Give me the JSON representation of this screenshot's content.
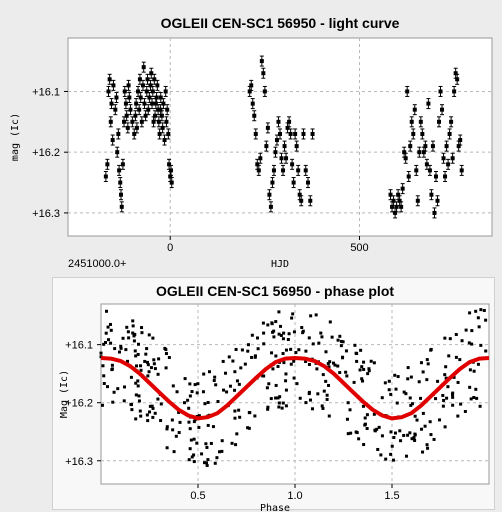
{
  "chart_data": [
    {
      "type": "scatter",
      "title": "OGLEII CEN-SC1 56950 - light curve",
      "xlabel": "HJD",
      "ylabel": "mag (Ic)",
      "x_offset_label": "2451000.0+",
      "xlim": [
        -270,
        850
      ],
      "ylim": [
        16.338,
        16.012
      ],
      "y_inverted": true,
      "x_ticks": [
        0,
        500
      ],
      "x_tick_labels": [
        "0",
        "500"
      ],
      "y_ticks": [
        16.1,
        16.2,
        16.3
      ],
      "y_tick_labels": [
        "+16.1",
        "+16.2",
        "+16.3"
      ],
      "grid": true,
      "error_bars": true,
      "marker_color": "#000000",
      "x": [
        -170,
        -166,
        -163,
        -160,
        -157,
        -155,
        -152,
        -150,
        -145,
        -142,
        -140,
        -137,
        -135,
        -132,
        -130,
        -128,
        -125,
        -122,
        -120,
        -117,
        -115,
        -112,
        -110,
        -108,
        -105,
        -100,
        -95,
        -92,
        -90,
        -88,
        -85,
        -82,
        -80,
        -78,
        -75,
        -72,
        -70,
        -68,
        -65,
        -62,
        -60,
        -58,
        -55,
        -52,
        -50,
        -48,
        -46,
        -44,
        -42,
        -40,
        -38,
        -36,
        -34,
        -32,
        -30,
        -28,
        -26,
        -25,
        -22,
        -20,
        -18,
        -15,
        -12,
        -10,
        -8,
        -5,
        -3,
        0,
        2,
        4,
        210,
        214,
        218,
        222,
        226,
        230,
        234,
        238,
        242,
        246,
        250,
        254,
        258,
        262,
        266,
        270,
        274,
        278,
        282,
        286,
        290,
        294,
        298,
        302,
        306,
        310,
        314,
        318,
        322,
        326,
        330,
        334,
        338,
        342,
        346,
        352,
        358,
        364,
        370,
        376,
        582,
        586,
        590,
        594,
        598,
        602,
        606,
        610,
        614,
        618,
        622,
        626,
        630,
        634,
        638,
        642,
        646,
        650,
        654,
        658,
        662,
        666,
        670,
        674,
        678,
        682,
        686,
        690,
        694,
        698,
        702,
        706,
        710,
        714,
        718,
        722,
        726,
        730,
        734,
        738,
        742,
        746,
        750,
        754,
        758,
        762,
        766,
        770
      ],
      "y": [
        16.24,
        16.22,
        16.1,
        16.08,
        16.15,
        16.12,
        16.18,
        16.09,
        16.13,
        16.11,
        16.2,
        16.17,
        16.23,
        16.25,
        16.27,
        16.29,
        16.22,
        16.15,
        16.1,
        16.12,
        16.14,
        16.16,
        16.09,
        16.11,
        16.13,
        16.15,
        16.17,
        16.14,
        16.12,
        16.16,
        16.1,
        16.13,
        16.08,
        16.11,
        16.15,
        16.09,
        16.06,
        16.12,
        16.14,
        16.1,
        16.08,
        16.13,
        16.11,
        16.09,
        16.07,
        16.12,
        16.1,
        16.15,
        16.08,
        16.14,
        16.12,
        16.11,
        16.09,
        16.13,
        16.15,
        16.17,
        16.13,
        16.11,
        16.14,
        16.16,
        16.12,
        16.18,
        16.1,
        16.15,
        16.13,
        16.17,
        16.22,
        16.24,
        16.23,
        16.25,
        16.1,
        16.09,
        16.12,
        16.14,
        16.17,
        16.22,
        16.23,
        16.21,
        16.05,
        16.07,
        16.1,
        16.19,
        16.16,
        16.27,
        16.29,
        16.25,
        16.23,
        16.2,
        16.18,
        16.15,
        16.17,
        16.21,
        16.23,
        16.19,
        16.21,
        16.16,
        16.15,
        16.17,
        16.22,
        16.25,
        16.17,
        16.19,
        16.23,
        16.27,
        16.28,
        16.17,
        16.23,
        16.25,
        16.28,
        16.17,
        16.27,
        16.29,
        16.28,
        16.3,
        16.29,
        16.27,
        16.28,
        16.29,
        16.26,
        16.2,
        16.21,
        16.1,
        16.24,
        16.19,
        16.15,
        16.17,
        16.13,
        16.23,
        16.28,
        16.2,
        16.15,
        16.17,
        16.2,
        16.19,
        16.22,
        16.12,
        16.23,
        16.27,
        16.19,
        16.3,
        16.24,
        16.28,
        16.15,
        16.1,
        16.13,
        16.21,
        16.24,
        16.19,
        16.22,
        16.17,
        16.15,
        16.21,
        16.1,
        16.07,
        16.08,
        16.19,
        16.18,
        16.23
      ]
    },
    {
      "type": "scatter",
      "title": "OGLEII CEN-SC1 56950 - phase plot",
      "xlabel": "Phase",
      "ylabel": "Mag (Ic)",
      "xlim": [
        0.0,
        2.0
      ],
      "ylim": [
        16.34,
        16.03
      ],
      "y_inverted": true,
      "x_ticks": [
        0.5,
        1.0,
        1.5
      ],
      "x_tick_labels": [
        "0.5",
        "1.0",
        "1.5"
      ],
      "y_ticks": [
        16.1,
        16.2,
        16.3
      ],
      "y_tick_labels": [
        "+16.1",
        "+16.2",
        "+16.3"
      ],
      "grid": true,
      "marker_color": "#000000",
      "fit_curve_color": "#e00000",
      "fit_curve": {
        "description_mean": 16.175,
        "amplitude": 0.052,
        "max_brightness_phase": 0.0,
        "x": [
          0.0,
          0.05,
          0.1,
          0.15,
          0.2,
          0.25,
          0.3,
          0.35,
          0.4,
          0.45,
          0.5,
          0.55,
          0.6,
          0.65,
          0.7,
          0.75,
          0.8,
          0.85,
          0.9,
          0.95,
          1.0,
          1.05,
          1.1,
          1.15,
          1.2,
          1.25,
          1.3,
          1.35,
          1.4,
          1.45,
          1.5,
          1.55,
          1.6,
          1.65,
          1.7,
          1.75,
          1.8,
          1.85,
          1.9,
          1.95,
          2.0
        ],
        "y": [
          16.123,
          16.124,
          16.128,
          16.137,
          16.15,
          16.166,
          16.182,
          16.198,
          16.212,
          16.222,
          16.227,
          16.225,
          16.218,
          16.205,
          16.189,
          16.173,
          16.157,
          16.142,
          16.13,
          16.124,
          16.123,
          16.124,
          16.128,
          16.137,
          16.15,
          16.166,
          16.182,
          16.198,
          16.212,
          16.222,
          16.227,
          16.225,
          16.218,
          16.205,
          16.189,
          16.173,
          16.157,
          16.142,
          16.13,
          16.124,
          16.123
        ]
      }
    }
  ]
}
